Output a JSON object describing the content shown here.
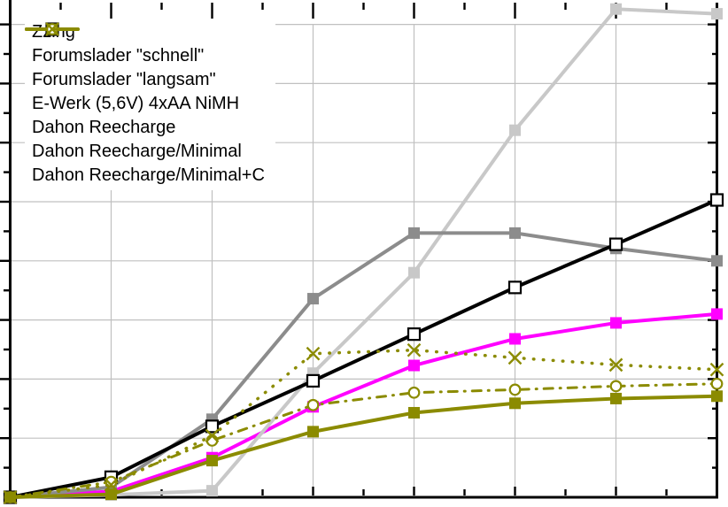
{
  "chart_data": {
    "type": "line",
    "title": "",
    "xlabel": "",
    "ylabel": "",
    "legend_position": "top-left",
    "axes": {
      "x_major_divisions": 7,
      "y_major_divisions": 8,
      "minor_ticks_per_division": 1,
      "grid": true,
      "tick_labels_visible": false,
      "note": "Axis tick labels are cropped out of the screenshot; series values below are expressed in grid divisions measured from the bottom-left origin."
    },
    "colors": {
      "grid": "#c0c0c0",
      "frame": "#000000",
      "background": "#ffffff"
    },
    "x": [
      0,
      1,
      2,
      3,
      4,
      5,
      6,
      7
    ],
    "series": [
      {
        "name": "Zzing",
        "color": "#ff00ff",
        "line_style": "solid",
        "marker": "filled-square",
        "values": [
          0,
          0.1,
          0.67,
          1.53,
          2.23,
          2.68,
          2.95,
          3.1
        ]
      },
      {
        "name": "Forumslader \"schnell\"",
        "color": "#c8c8c8",
        "line_style": "solid",
        "marker": "filled-square",
        "values": [
          0,
          0.04,
          0.11,
          2.1,
          3.8,
          6.21,
          8.26,
          8.18
        ]
      },
      {
        "name": "Forumslader \"langsam\"",
        "color": "#8c8c8c",
        "line_style": "solid",
        "marker": "filled-square",
        "values": [
          0,
          0.17,
          1.32,
          3.36,
          4.47,
          4.47,
          4.21,
          4.0
        ]
      },
      {
        "name": "E-Werk (5,6V) 4xAA NiMH",
        "color": "#000000",
        "line_style": "solid",
        "marker": "open-square",
        "values": [
          0,
          0.34,
          1.2,
          1.97,
          2.76,
          3.55,
          4.28,
          5.03
        ]
      },
      {
        "name": "Dahon Reecharge",
        "color": "#8b8b00",
        "line_style": "solid",
        "marker": "filled-square",
        "values": [
          0,
          0.05,
          0.62,
          1.11,
          1.43,
          1.59,
          1.67,
          1.71
        ]
      },
      {
        "name": "Dahon Reecharge/Minimal",
        "color": "#8b8b00",
        "line_style": "dash-dot",
        "marker": "open-circle",
        "values": [
          0,
          0.26,
          0.96,
          1.56,
          1.77,
          1.82,
          1.88,
          1.92
        ]
      },
      {
        "name": "Dahon Reecharge/Minimal+C",
        "color": "#8b8b00",
        "line_style": "dotted",
        "marker": "x-cross",
        "values": [
          0,
          0.21,
          1.04,
          2.43,
          2.49,
          2.36,
          2.24,
          2.16
        ]
      }
    ],
    "draw_order": [
      0,
      1,
      2,
      3,
      5,
      6,
      4
    ]
  }
}
